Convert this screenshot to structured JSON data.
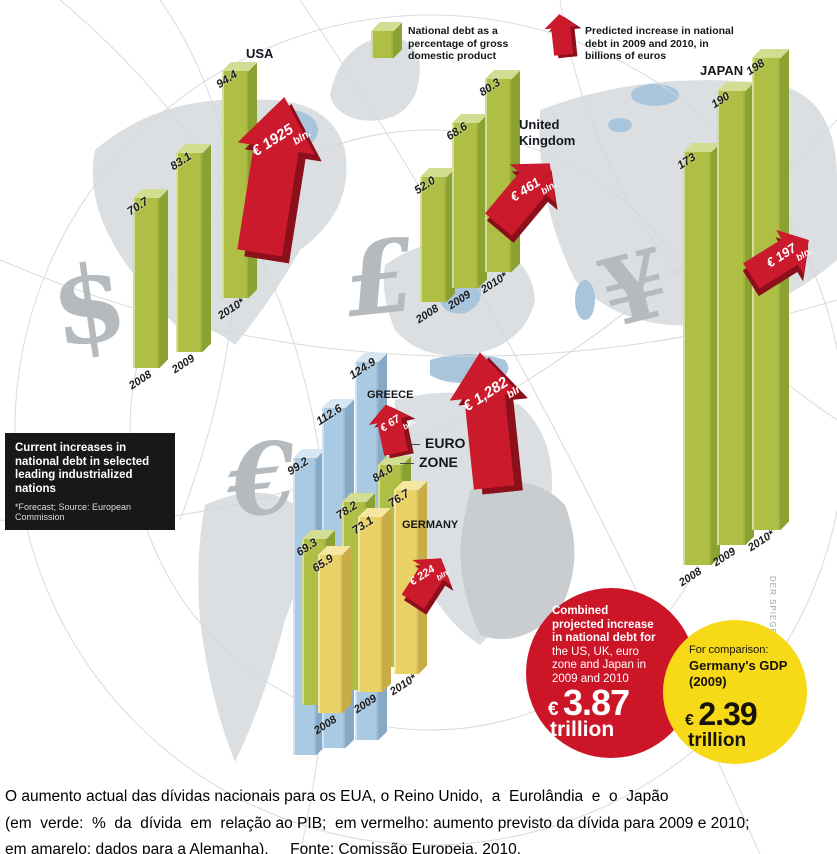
{
  "legend": {
    "gdp_label": "National debt as a percentage of gross domestic product",
    "increase_label": "Predicted increase in national debt in 2009 and 2010, in billions of euros"
  },
  "info_box": {
    "title": "Current increases in national debt in selected leading industrialized nations",
    "footnote": "*Forecast; Source: European Commission"
  },
  "currency_symbols": {
    "dollar": "$",
    "pound": "£",
    "yen": "¥",
    "euro": "€"
  },
  "credit": "DER SPIEGEL",
  "country_labels": {
    "usa": "USA",
    "uk": "United Kingdom",
    "japan": "JAPAN",
    "greece": "GREECE",
    "germany": "GERMANY",
    "eurozone_line1": "EURO",
    "eurozone_line2": "ZONE",
    "eurozone_dash": "—"
  },
  "chart_data": {
    "type": "bar",
    "title": "Current increases in national debt in selected leading industrialized nations",
    "green_series_meaning": "National debt as a percentage of gross domestic product",
    "red_arrow_meaning": "Predicted increase in national debt in 2009 and 2010, in billions of euros",
    "categories": [
      "2008",
      "2009",
      "2010*"
    ],
    "groups": [
      {
        "name": "USA",
        "color": "green",
        "categories": [
          "2008",
          "2009",
          "2010*"
        ],
        "values": [
          70.7,
          83.1,
          94.4
        ],
        "labels": [
          "70.7",
          "83.1",
          "94.4"
        ],
        "arrow": {
          "value": "€ 1925",
          "unit": "bln."
        }
      },
      {
        "name": "United Kingdom",
        "color": "green",
        "categories": [
          "2008",
          "2009",
          "2010*"
        ],
        "values": [
          52.0,
          68.6,
          80.3
        ],
        "labels": [
          "52.0",
          "68.6",
          "80.3"
        ],
        "arrow": {
          "value": "€ 461",
          "unit": "bln."
        }
      },
      {
        "name": "JAPAN",
        "color": "green",
        "categories": [
          "2008",
          "2009",
          "2010*"
        ],
        "values": [
          173,
          190,
          198
        ],
        "labels": [
          "173",
          "190",
          "198"
        ],
        "arrow": {
          "value": "€ 197",
          "unit": "bln."
        }
      },
      {
        "name": "GREECE",
        "color": "blue",
        "values": [
          99.2,
          112.6,
          124.9
        ],
        "labels": [
          "99.2",
          "112.6",
          "124.9"
        ],
        "arrow": {
          "value": "€ 67",
          "unit": "bln."
        }
      },
      {
        "name": "EURO ZONE",
        "color": "green",
        "values": [
          69.3,
          78.2,
          84.0
        ],
        "labels": [
          "69.3",
          "78.2",
          "84.0"
        ],
        "arrow": {
          "value": "€ 1,282",
          "unit": "bln."
        }
      },
      {
        "name": "GERMANY",
        "color": "yellow",
        "categories": [
          "2008",
          "2009",
          "2010*"
        ],
        "values": [
          65.9,
          73.1,
          76.7
        ],
        "labels": [
          "65.9",
          "73.1",
          "76.7"
        ],
        "arrow": {
          "value": "€ 224",
          "unit": "bln."
        }
      }
    ]
  },
  "callouts": {
    "combined": {
      "lead": "Combined projected increase in national debt for",
      "rest": " the US, UK, euro zone and Japan in 2009 and 2010",
      "currency": "€",
      "value": "3.87",
      "unit": "trillion"
    },
    "comparison": {
      "intro": "For comparison:",
      "subject": "Germany's GDP",
      "year": "(2009)",
      "currency": "€",
      "value": "2.39",
      "unit": "trillion"
    }
  },
  "caption": {
    "line1": "O aumento actual das dívidas nacionais para os EUA, o Reino Unido,  a  Eurolândia  e  o  Japão",
    "line2": "(em  verde:  %  da  dívida  em  relação ao PIB;  em vermelho: aumento previsto da dívida para 2009 e 2010;",
    "line3": "em amarelo: dados para a Alemanha).     Fonte: Comissão Europeia, 2010."
  }
}
